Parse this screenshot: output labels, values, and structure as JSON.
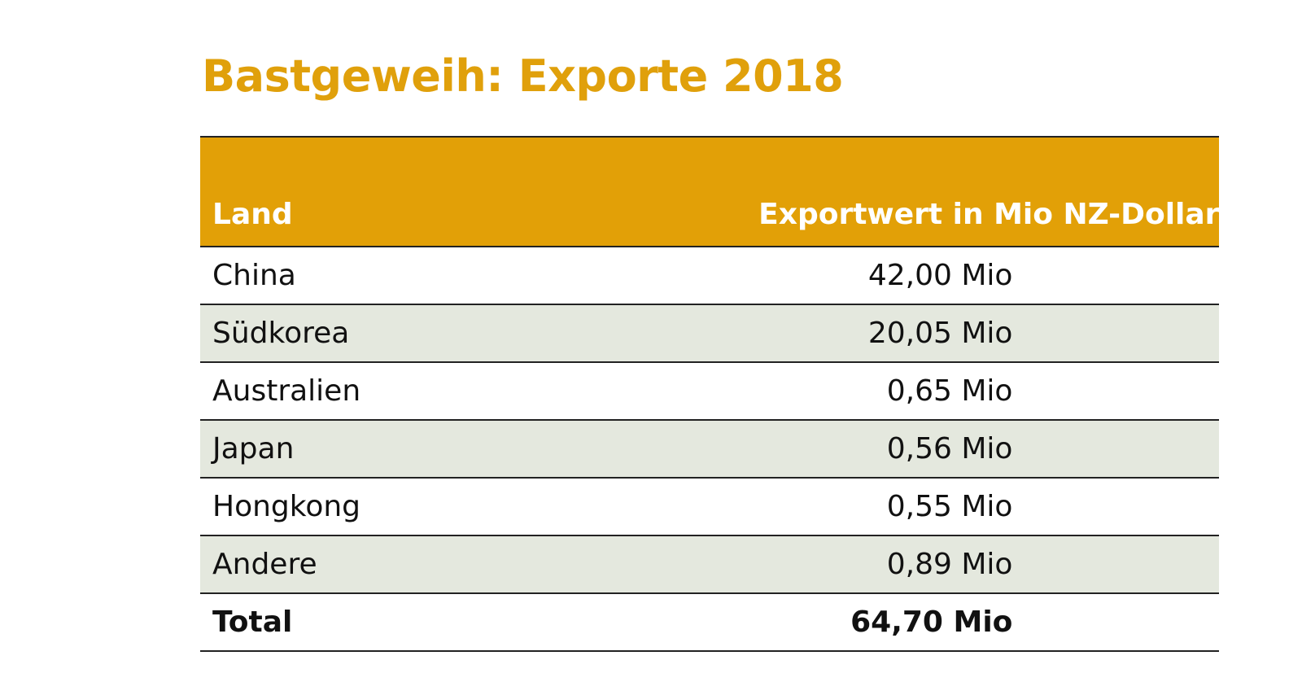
{
  "header": {
    "title": "Bastgeweih: Exporte 2018"
  },
  "table": {
    "columns": [
      "Land",
      "Exportwert in Mio NZ-Dollar"
    ],
    "rows": [
      [
        "China",
        "42,00 Mio"
      ],
      [
        "Südkorea",
        "20,05 Mio"
      ],
      [
        "Australien",
        "0,65 Mio"
      ],
      [
        "Japan",
        "0,56 Mio"
      ],
      [
        "Hongkong",
        "0,55 Mio"
      ],
      [
        "Andere",
        "0,89 Mio"
      ]
    ],
    "total": [
      "Total",
      "64,70 Mio"
    ]
  }
}
